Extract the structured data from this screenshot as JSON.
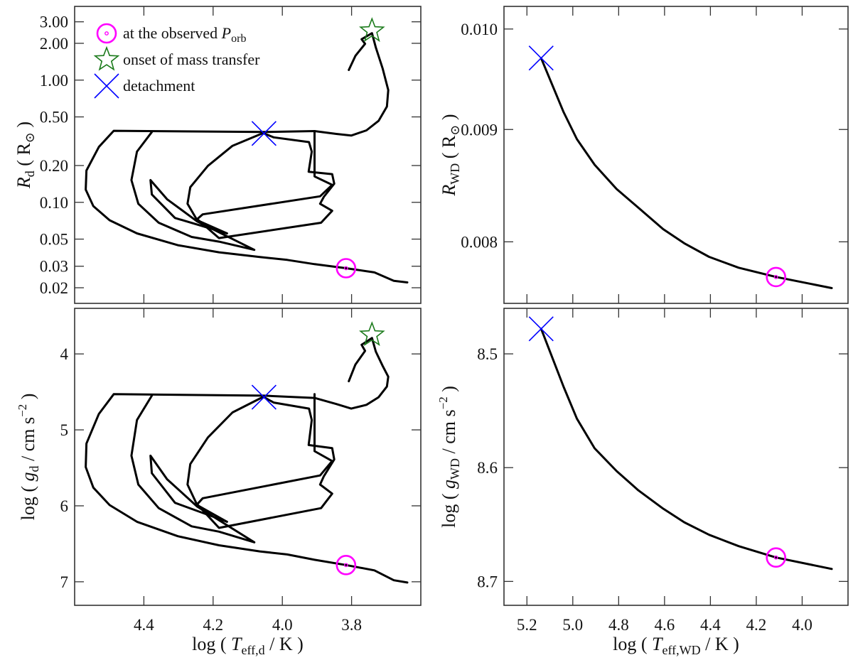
{
  "colors": {
    "observed": "#ff00ff",
    "onset": "#1a7a1a",
    "detachment": "#0000ff",
    "track": "#000000"
  },
  "legend": {
    "placement": "top-left",
    "items": [
      {
        "marker": "circle-dot-icon",
        "text": "at the observed ",
        "var": "P",
        "sub": "orb"
      },
      {
        "marker": "star-icon",
        "text": "onset of mass transfer"
      },
      {
        "marker": "cross-icon",
        "text": "detachment"
      }
    ]
  },
  "chart_data": [
    {
      "type": "line",
      "panel": "top-left",
      "xlim": [
        4.6,
        3.6
      ],
      "xscale": "linear",
      "ylim": [
        0.0149,
        4.01
      ],
      "yscale": "log",
      "xticks": [],
      "xtick_values": [
        4.4,
        4.2,
        4.0,
        3.8
      ],
      "yticks": [
        "3.00",
        "2.00",
        "1.00",
        "0.50",
        "0.20",
        "0.10",
        "0.05",
        "0.03",
        "0.02"
      ],
      "ytick_values": [
        3,
        2,
        1,
        0.5,
        0.2,
        0.1,
        0.05,
        0.03,
        0.02
      ],
      "xlabel": null,
      "ylabel": [
        {
          "t": "R",
          "i": true
        },
        {
          "t": "d",
          "sub": true
        },
        {
          "t": " ( R"
        },
        {
          "t": "⊙",
          "sub": true
        },
        {
          "t": " )"
        }
      ],
      "segments": [
        {
          "x": [
            3.808,
            3.789,
            3.761,
            3.771,
            3.741,
            3.73,
            3.71,
            3.694,
            3.698,
            3.722,
            3.757,
            3.801,
            3.844,
            3.907,
            4.053,
            4.487,
            4.53,
            4.566,
            4.568,
            4.546,
            4.499,
            4.42,
            4.302,
            4.183,
            4.065,
            3.986,
            3.907,
            3.816,
            3.734,
            3.678,
            3.639
          ],
          "y": [
            1.21,
            1.58,
            1.98,
            2.16,
            2.42,
            1.85,
            1.24,
            0.829,
            0.607,
            0.464,
            0.388,
            0.352,
            0.363,
            0.383,
            0.376,
            0.385,
            0.284,
            0.182,
            0.127,
            0.0931,
            0.0713,
            0.0557,
            0.0446,
            0.039,
            0.0357,
            0.0338,
            0.0312,
            0.0289,
            0.0267,
            0.0228,
            0.0221
          ]
        },
        {
          "x": [
            4.053,
            4.025,
            3.923,
            3.915,
            3.924,
            3.856,
            3.85,
            3.88,
            3.891,
            3.856,
            3.888,
            4.183,
            4.246,
            4.23,
            3.891,
            3.856,
            3.907,
            3.907
          ],
          "y": [
            0.366,
            0.34,
            0.311,
            0.26,
            0.178,
            0.17,
            0.142,
            0.111,
            0.0973,
            0.0852,
            0.0681,
            0.051,
            0.0729,
            0.0797,
            0.112,
            0.139,
            0.163,
            0.383
          ]
        },
        {
          "x": [
            4.053,
            4.144,
            4.215,
            4.266,
            4.274,
            4.246,
            4.16
          ],
          "y": [
            0.371,
            0.29,
            0.199,
            0.133,
            0.0973,
            0.0713,
            0.0557
          ]
        },
        {
          "x": [
            4.377,
            4.42,
            4.436,
            4.416,
            4.357,
            4.262,
            4.183,
            4.081,
            4.246,
            4.333,
            4.381,
            4.377,
            4.31,
            4.16
          ],
          "y": [
            0.376,
            0.26,
            0.152,
            0.0973,
            0.0681,
            0.0521,
            0.0477,
            0.0408,
            0.0697,
            0.106,
            0.152,
            0.116,
            0.0745,
            0.0557
          ]
        }
      ],
      "markers": {
        "observed": [
          3.816,
          0.0289
        ],
        "onset": [
          3.741,
          2.53
        ],
        "detachment": [
          4.053,
          0.366
        ]
      },
      "show_legend": true
    },
    {
      "type": "line",
      "panel": "bottom-left",
      "xlim": [
        4.6,
        3.6
      ],
      "xscale": "linear",
      "ylim": [
        7.31,
        3.4
      ],
      "yscale": "linear",
      "yinverted": true,
      "xticks": [
        "4.4",
        "4.2",
        "4.0",
        "3.8"
      ],
      "xtick_values": [
        4.4,
        4.2,
        4.0,
        3.8
      ],
      "yticks": [
        "4",
        "5",
        "6",
        "7"
      ],
      "ytick_values": [
        4,
        5,
        6,
        7
      ],
      "xlabel": [
        {
          "t": "log ( "
        },
        {
          "t": "T",
          "i": true
        },
        {
          "t": "eff,d",
          "sub": true
        },
        {
          "t": " / K )"
        }
      ],
      "ylabel": [
        {
          "t": "log ( "
        },
        {
          "t": "g",
          "i": true
        },
        {
          "t": "d",
          "sub": true
        },
        {
          "t": " / cm s"
        },
        {
          "t": "−2",
          "sup": true
        },
        {
          "t": " )"
        }
      ],
      "segments": [
        {
          "x": [
            3.808,
            3.789,
            3.761,
            3.771,
            3.741,
            3.73,
            3.71,
            3.694,
            3.698,
            3.722,
            3.757,
            3.801,
            3.844,
            3.907,
            4.053,
            4.487,
            4.53,
            4.566,
            4.568,
            4.546,
            4.499,
            4.42,
            4.302,
            4.183,
            4.065,
            3.986,
            3.907,
            3.816,
            3.734,
            3.678,
            3.639
          ],
          "y": [
            4.36,
            4.14,
            3.96,
            3.88,
            3.79,
            3.97,
            4.16,
            4.3,
            4.43,
            4.57,
            4.67,
            4.72,
            4.66,
            4.58,
            4.55,
            4.53,
            4.79,
            5.18,
            5.49,
            5.76,
            5.99,
            6.21,
            6.4,
            6.52,
            6.6,
            6.64,
            6.71,
            6.78,
            6.85,
            6.98,
            7.01
          ]
        },
        {
          "x": [
            4.053,
            4.025,
            3.923,
            3.915,
            3.924,
            3.856,
            3.85,
            3.88,
            3.891,
            3.856,
            3.888,
            4.183,
            4.246,
            4.23,
            3.891,
            3.856,
            3.907,
            3.907
          ],
          "y": [
            4.57,
            4.64,
            4.72,
            4.87,
            5.2,
            5.24,
            5.39,
            5.61,
            5.72,
            5.84,
            6.03,
            6.29,
            5.98,
            5.9,
            5.6,
            5.41,
            5.28,
            4.53
          ]
        },
        {
          "x": [
            4.053,
            4.144,
            4.215,
            4.266,
            4.274,
            4.246,
            4.16
          ],
          "y": [
            4.56,
            4.77,
            5.1,
            5.45,
            5.72,
            5.99,
            6.21
          ]
        },
        {
          "x": [
            4.377,
            4.42,
            4.436,
            4.416,
            4.357,
            4.262,
            4.183,
            4.081,
            4.246,
            4.333,
            4.381,
            4.377,
            4.31,
            4.16
          ],
          "y": [
            4.55,
            4.87,
            5.34,
            5.72,
            6.03,
            6.27,
            6.34,
            6.48,
            6.01,
            5.65,
            5.34,
            5.57,
            5.96,
            6.21
          ]
        }
      ],
      "markers": {
        "observed": [
          3.816,
          6.78
        ],
        "onset": [
          3.741,
          3.75
        ],
        "detachment": [
          4.053,
          4.57
        ]
      }
    },
    {
      "type": "line",
      "panel": "top-right",
      "xlim": [
        5.3,
        3.8
      ],
      "xscale": "linear",
      "ylim": [
        0.0075,
        0.01024
      ],
      "yscale": "log",
      "xticks": [],
      "xtick_values": [
        5.2,
        5.0,
        4.8,
        4.6,
        4.4,
        4.2,
        4.0
      ],
      "yticks": [
        "0.010",
        "0.009",
        "0.008"
      ],
      "ytick_values": [
        0.01,
        0.009,
        0.008
      ],
      "xlabel": null,
      "ylabel": [
        {
          "t": "R",
          "i": true
        },
        {
          "t": "WD",
          "sub": true
        },
        {
          "t": " ( R"
        },
        {
          "t": "⊙",
          "sub": true
        },
        {
          "t": " )"
        }
      ],
      "segments": [
        {
          "x": [
            5.138,
            5.04,
            4.982,
            4.905,
            4.809,
            4.714,
            4.606,
            4.514,
            4.406,
            4.277,
            4.114,
            3.871
          ],
          "y": [
            0.009699,
            0.009165,
            0.008909,
            0.008673,
            0.008456,
            0.008291,
            0.008107,
            0.007988,
            0.007875,
            0.007786,
            0.007711,
            0.007621
          ]
        }
      ],
      "markers": {
        "observed": [
          4.114,
          0.00771
        ],
        "detachment": [
          5.138,
          0.0097
        ]
      }
    },
    {
      "type": "line",
      "panel": "bottom-right",
      "xlim": [
        5.3,
        3.8
      ],
      "xscale": "linear",
      "ylim": [
        8.721,
        8.46
      ],
      "yscale": "linear",
      "yinverted": true,
      "xticks": [
        "5.2",
        "5.0",
        "4.8",
        "4.6",
        "4.4",
        "4.2",
        "4.0"
      ],
      "xtick_values": [
        5.2,
        5.0,
        4.8,
        4.6,
        4.4,
        4.2,
        4.0
      ],
      "yticks": [
        "8.5",
        "8.6",
        "8.7"
      ],
      "ytick_values": [
        8.5,
        8.6,
        8.7
      ],
      "xlabel": [
        {
          "t": "log ( "
        },
        {
          "t": "T",
          "i": true
        },
        {
          "t": "eff,WD",
          "sub": true
        },
        {
          "t": " / K )"
        }
      ],
      "ylabel": [
        {
          "t": "log ( "
        },
        {
          "t": "g",
          "i": true
        },
        {
          "t": "WD",
          "sub": true
        },
        {
          "t": " / cm s"
        },
        {
          "t": "−2",
          "sup": true
        },
        {
          "t": " )"
        }
      ],
      "segments": [
        {
          "x": [
            5.138,
            5.04,
            4.982,
            4.905,
            4.809,
            4.714,
            4.606,
            4.514,
            4.406,
            4.277,
            4.114,
            3.871
          ],
          "y": [
            8.478,
            8.529,
            8.557,
            8.583,
            8.603,
            8.62,
            8.636,
            8.648,
            8.659,
            8.669,
            8.679,
            8.689
          ]
        }
      ],
      "markers": {
        "observed": [
          4.114,
          8.679
        ],
        "detachment": [
          5.138,
          8.478
        ]
      }
    }
  ]
}
